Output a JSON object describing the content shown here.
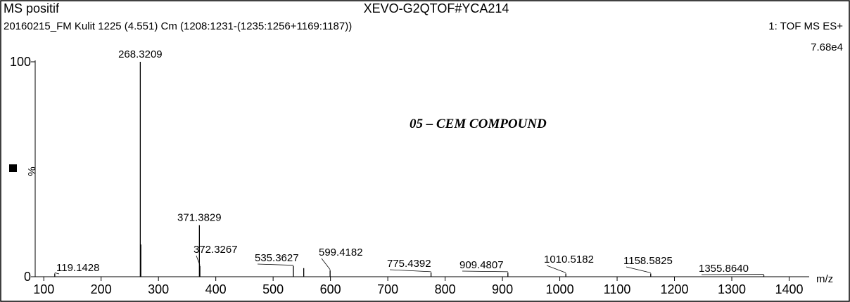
{
  "header": {
    "left_title": "MS positif",
    "center_title": "XEVO-G2QTOF#YCA214",
    "sample": "20160215_FM Kulit 1225 (4.551) Cm (1208:1231-(1235:1256+1169:1187))",
    "mode": "1: TOF MS ES+",
    "intensity": "7.68e4"
  },
  "chart_data": {
    "type": "stem",
    "annotation": "05 – CEM COMPOUND",
    "ylabel": "%",
    "xlabel": "m/z",
    "color": "#000000",
    "x": [
      119.1428,
      268.3209,
      269.3,
      371.3829,
      372.3267,
      535.3627,
      553.4,
      599.4182,
      775.4392,
      909.4807,
      1010.5182,
      1158.5825,
      1355.864
    ],
    "values": [
      1.5,
      100,
      15,
      24,
      5,
      5,
      4,
      3,
      2,
      2,
      1.5,
      1.5,
      0.8
    ],
    "x_labels": [
      "119.1428",
      "268.3209",
      null,
      "371.3829",
      "372.3267",
      "535.3627",
      null,
      "599.4182",
      "775.4392",
      "909.4807",
      "1010.5182",
      "1158.5825",
      "1355.8640"
    ],
    "xlim": [
      85,
      1435
    ],
    "xticks": [
      100,
      200,
      300,
      400,
      500,
      600,
      700,
      800,
      900,
      1000,
      1100,
      1200,
      1300,
      1400
    ],
    "ylim": [
      0,
      100
    ],
    "yticks": [
      0,
      100
    ]
  }
}
